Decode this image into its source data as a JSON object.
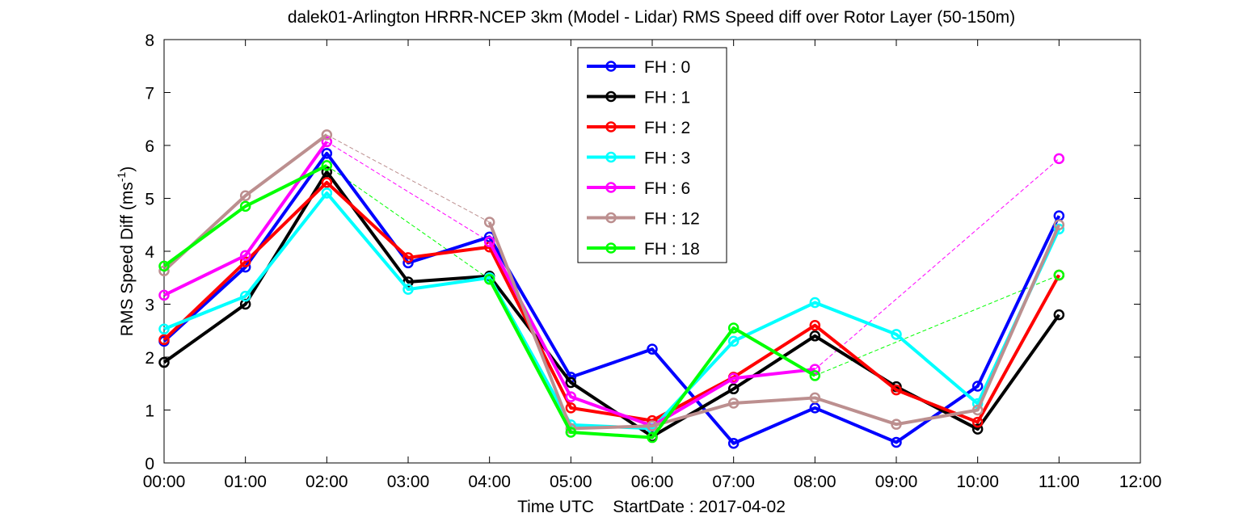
{
  "chart_data": {
    "type": "line",
    "title": "dalek01-Arlington HRRR-NCEP 3km (Model - Lidar) RMS Speed diff over Rotor Layer (50-150m)",
    "xlabel": "Time UTC    StartDate : 2017-04-02",
    "ylabel_main": "RMS Speed Diff (ms",
    "ylabel_sup": "-1",
    "ylabel_close": ")",
    "ylim": [
      0,
      8
    ],
    "xlim": [
      0,
      12
    ],
    "yticks": [
      "0",
      "1",
      "2",
      "3",
      "4",
      "5",
      "6",
      "7",
      "8"
    ],
    "xticks": [
      "00:00",
      "01:00",
      "02:00",
      "03:00",
      "04:00",
      "05:00",
      "06:00",
      "07:00",
      "08:00",
      "09:00",
      "10:00",
      "11:00",
      "12:00"
    ],
    "grid": false,
    "legend_position": "top-center",
    "series": [
      {
        "name": "FH : 0",
        "color": "#0000ff",
        "values": [
          2.3,
          3.7,
          5.85,
          3.78,
          4.27,
          1.62,
          2.15,
          0.37,
          1.04,
          0.39,
          1.45,
          4.67
        ]
      },
      {
        "name": "FH : 1",
        "color": "#000000",
        "values": [
          1.9,
          3.0,
          5.5,
          3.42,
          3.53,
          1.52,
          0.5,
          1.4,
          2.4,
          1.44,
          0.64,
          2.8
        ]
      },
      {
        "name": "FH : 2",
        "color": "#ff0000",
        "values": [
          2.33,
          3.8,
          5.3,
          3.88,
          4.08,
          1.04,
          0.8,
          1.62,
          2.6,
          1.38,
          0.77,
          3.55
        ]
      },
      {
        "name": "FH : 3",
        "color": "#00ffff",
        "values": [
          2.53,
          3.15,
          5.1,
          3.28,
          3.5,
          0.72,
          0.65,
          2.3,
          3.03,
          2.43,
          1.12,
          4.42
        ]
      },
      {
        "name": "FH : 6",
        "color": "#ff00ff",
        "values": [
          3.17,
          3.92,
          6.07,
          null,
          4.18,
          1.25,
          0.7,
          1.6,
          1.77,
          null,
          null,
          5.75
        ]
      },
      {
        "name": "FH : 12",
        "color": "#bc8f8f",
        "values": [
          3.63,
          5.05,
          6.2,
          null,
          4.55,
          0.65,
          0.7,
          1.13,
          1.23,
          0.73,
          1.0,
          4.5
        ]
      },
      {
        "name": "FH : 18",
        "color": "#00ff00",
        "values": [
          3.72,
          4.85,
          5.62,
          null,
          3.47,
          0.58,
          0.48,
          2.55,
          1.65,
          null,
          null,
          3.55
        ]
      }
    ]
  }
}
